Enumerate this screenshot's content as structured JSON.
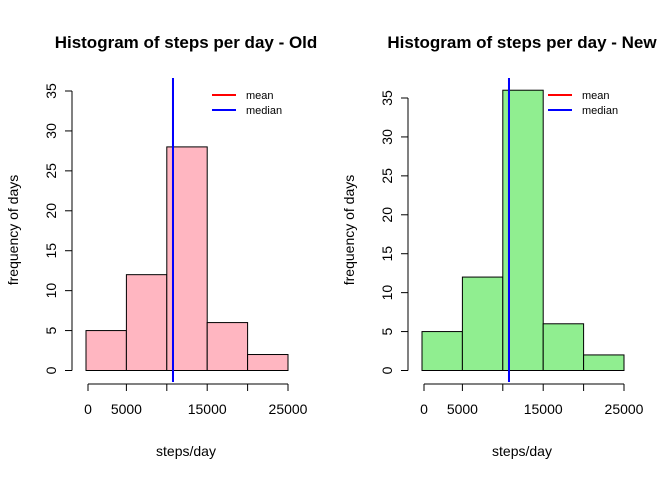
{
  "chart_data": [
    {
      "type": "bar",
      "title": "Histogram of steps per day - Old",
      "xlabel": "steps/day",
      "ylabel": "frequency of days",
      "bins": [
        [
          0,
          5000
        ],
        [
          5000,
          10000
        ],
        [
          10000,
          15000
        ],
        [
          15000,
          20000
        ],
        [
          20000,
          25000
        ]
      ],
      "values": [
        5,
        12,
        28,
        6,
        2
      ],
      "bar_color": "#ffb6c1",
      "xlim": [
        0,
        25000
      ],
      "ylim": [
        0,
        35
      ],
      "x_ticks": [
        0,
        5000,
        10000,
        15000,
        20000,
        25000
      ],
      "x_tick_labels": [
        "0",
        "5000",
        "",
        "15000",
        "",
        "25000"
      ],
      "y_ticks": [
        0,
        5,
        10,
        15,
        20,
        25,
        30,
        35
      ],
      "y_tick_labels": [
        "0",
        "5",
        "10",
        "15",
        "20",
        "25",
        "30",
        "35"
      ],
      "mean": 10766,
      "median": 10766,
      "legend": [
        {
          "label": "mean",
          "color": "#ff0000"
        },
        {
          "label": "median",
          "color": "#0000ff"
        }
      ],
      "legend_position": "top-right"
    },
    {
      "type": "bar",
      "title": "Histogram of steps per day - New",
      "xlabel": "steps/day",
      "ylabel": "frequency of days",
      "bins": [
        [
          0,
          5000
        ],
        [
          5000,
          10000
        ],
        [
          10000,
          15000
        ],
        [
          15000,
          20000
        ],
        [
          20000,
          25000
        ]
      ],
      "values": [
        5,
        12,
        36,
        6,
        2
      ],
      "bar_color": "#90ee90",
      "xlim": [
        0,
        25000
      ],
      "ylim": [
        0,
        36
      ],
      "x_ticks": [
        0,
        5000,
        10000,
        15000,
        20000,
        25000
      ],
      "x_tick_labels": [
        "0",
        "5000",
        "",
        "15000",
        "",
        "25000"
      ],
      "y_ticks": [
        0,
        5,
        10,
        15,
        20,
        25,
        30,
        35
      ],
      "y_tick_labels": [
        "0",
        "5",
        "10",
        "15",
        "20",
        "25",
        "30",
        "35"
      ],
      "mean": 10766,
      "median": 10766,
      "legend": [
        {
          "label": "mean",
          "color": "#ff0000"
        },
        {
          "label": "median",
          "color": "#0000ff"
        }
      ],
      "legend_position": "top-right"
    }
  ]
}
